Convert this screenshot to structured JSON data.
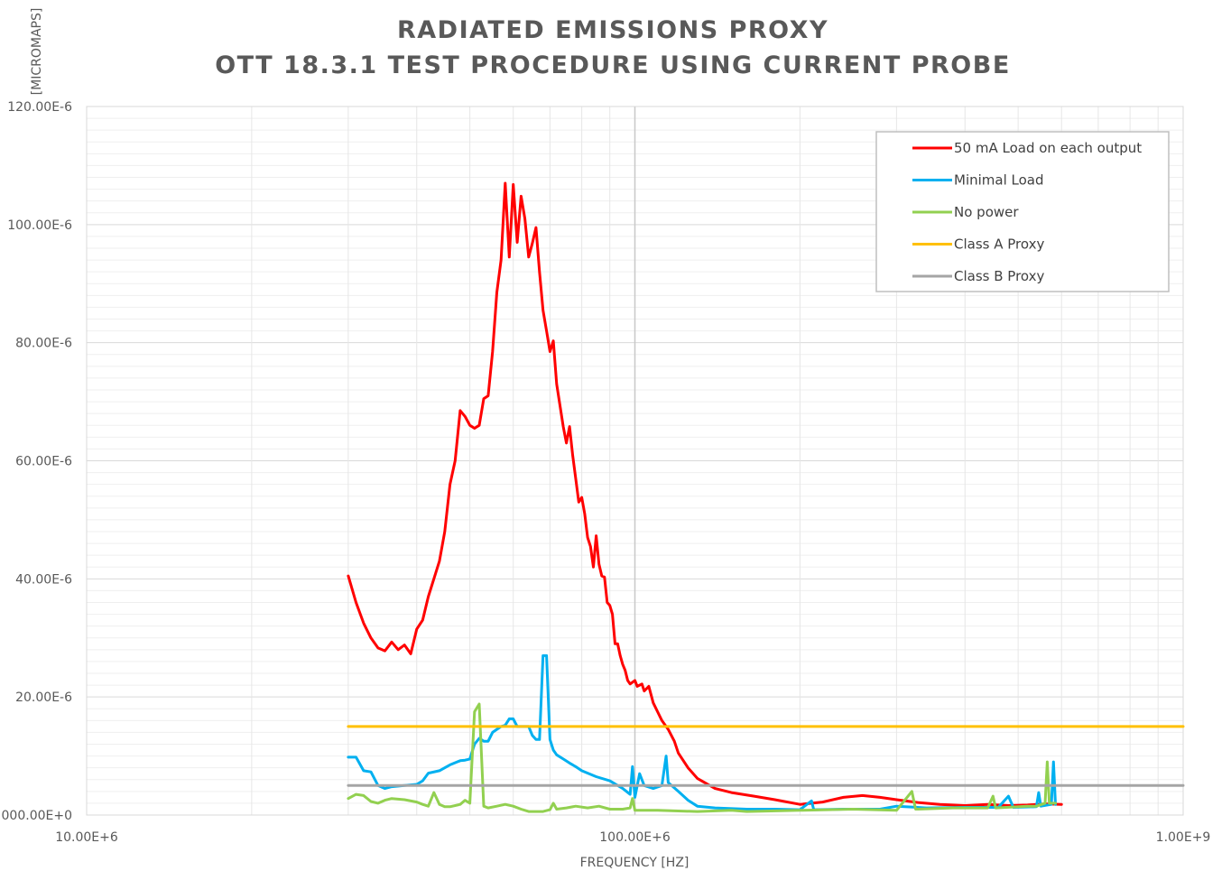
{
  "chart_data": {
    "type": "line",
    "title_lines": [
      "RADIATED EMISSIONS PROXY",
      "OTT 18.3.1 TEST PROCEDURE USING CURRENT PROBE"
    ],
    "xlabel": "FREQUENCY [HZ]",
    "ylabel": "[MICROMAPS]",
    "x_scale": "log",
    "xlim": [
      10000000,
      1000000000
    ],
    "ylim": [
      0,
      0.00012
    ],
    "x_ticks": [
      {
        "value": 10000000,
        "label": "10.00E+6"
      },
      {
        "value": 100000000,
        "label": "100.00E+6"
      },
      {
        "value": 1000000000,
        "label": "1.00E+9"
      }
    ],
    "y_ticks": [
      {
        "value": 0,
        "label": "000.00E+0"
      },
      {
        "value": 2e-05,
        "label": "20.00E-6"
      },
      {
        "value": 4e-05,
        "label": "40.00E-6"
      },
      {
        "value": 6e-05,
        "label": "60.00E-6"
      },
      {
        "value": 8e-05,
        "label": "80.00E-6"
      },
      {
        "value": 0.0001,
        "label": "100.00E-6"
      },
      {
        "value": 0.00012,
        "label": "120.00E-6"
      }
    ],
    "grid": true,
    "legend_position": "top-right",
    "series": [
      {
        "name": "50 mA Load on each output",
        "color": "#ff0000",
        "points": [
          [
            30000000.0,
            4.05e-05
          ],
          [
            31000000.0,
            3.6e-05
          ],
          [
            32000000.0,
            3.25e-05
          ],
          [
            33000000.0,
            3e-05
          ],
          [
            34000000.0,
            2.83e-05
          ],
          [
            35000000.0,
            2.78e-05
          ],
          [
            36000000.0,
            2.93e-05
          ],
          [
            37000000.0,
            2.8e-05
          ],
          [
            38000000.0,
            2.88e-05
          ],
          [
            39000000.0,
            2.73e-05
          ],
          [
            40000000.0,
            3.15e-05
          ],
          [
            41000000.0,
            3.3e-05
          ],
          [
            42000000.0,
            3.7e-05
          ],
          [
            44000000.0,
            4.3e-05
          ],
          [
            45000000.0,
            4.8e-05
          ],
          [
            46000000.0,
            5.6e-05
          ],
          [
            47000000.0,
            6e-05
          ],
          [
            48000000.0,
            6.85e-05
          ],
          [
            49000000.0,
            6.75e-05
          ],
          [
            50000000.0,
            6.6e-05
          ],
          [
            51000000.0,
            6.55e-05
          ],
          [
            52000000.0,
            6.6e-05
          ],
          [
            53000000.0,
            7.05e-05
          ],
          [
            54000000.0,
            7.1e-05
          ],
          [
            55000000.0,
            7.85e-05
          ],
          [
            56000000.0,
            8.85e-05
          ],
          [
            57000000.0,
            9.4e-05
          ],
          [
            58000000.0,
            0.000107
          ],
          [
            59000000.0,
            9.45e-05
          ],
          [
            60000000.0,
            0.0001068
          ],
          [
            61000000.0,
            9.7e-05
          ],
          [
            62000000.0,
            0.0001048
          ],
          [
            63000000.0,
            0.000101
          ],
          [
            64000000.0,
            9.45e-05
          ],
          [
            65000000.0,
            9.68e-05
          ],
          [
            66000000.0,
            9.95e-05
          ],
          [
            67000000.0,
            9.2e-05
          ],
          [
            68000000.0,
            8.55e-05
          ],
          [
            69000000.0,
            8.2e-05
          ],
          [
            70000000.0,
            7.85e-05
          ],
          [
            71000000.0,
            8.03e-05
          ],
          [
            72000000.0,
            7.3e-05
          ],
          [
            74000000.0,
            6.58e-05
          ],
          [
            75000000.0,
            6.3e-05
          ],
          [
            76000000.0,
            6.58e-05
          ],
          [
            77000000.0,
            6.1e-05
          ],
          [
            78000000.0,
            5.7e-05
          ],
          [
            79000000.0,
            5.3e-05
          ],
          [
            80000000.0,
            5.38e-05
          ],
          [
            81000000.0,
            5.1e-05
          ],
          [
            82000000.0,
            4.7e-05
          ],
          [
            83000000.0,
            4.55e-05
          ],
          [
            84000000.0,
            4.2e-05
          ],
          [
            85000000.0,
            4.73e-05
          ],
          [
            86000000.0,
            4.25e-05
          ],
          [
            87000000.0,
            4.05e-05
          ],
          [
            88000000.0,
            4.03e-05
          ],
          [
            89000000.0,
            3.6e-05
          ],
          [
            90000000.0,
            3.55e-05
          ],
          [
            91000000.0,
            3.4e-05
          ],
          [
            92000000.0,
            2.9e-05
          ],
          [
            93000000.0,
            2.9e-05
          ],
          [
            94000000.0,
            2.7e-05
          ],
          [
            95000000.0,
            2.55e-05
          ],
          [
            96000000.0,
            2.45e-05
          ],
          [
            97000000.0,
            2.28e-05
          ],
          [
            98000000.0,
            2.22e-05
          ],
          [
            100000000.0,
            2.28e-05
          ],
          [
            101000000.0,
            2.18e-05
          ],
          [
            103000000.0,
            2.22e-05
          ],
          [
            104000000.0,
            2.1e-05
          ],
          [
            106000000.0,
            2.18e-05
          ],
          [
            108000000.0,
            1.9e-05
          ],
          [
            110000000.0,
            1.75e-05
          ],
          [
            112000000.0,
            1.6e-05
          ],
          [
            115000000.0,
            1.45e-05
          ],
          [
            118000000.0,
            1.25e-05
          ],
          [
            120000000.0,
            1.05e-05
          ],
          [
            125000000.0,
            8e-06
          ],
          [
            130000000.0,
            6.2e-06
          ],
          [
            140000000.0,
            4.5e-06
          ],
          [
            150000000.0,
            3.8e-06
          ],
          [
            165000000.0,
            3.2e-06
          ],
          [
            180000000.0,
            2.6e-06
          ],
          [
            200000000.0,
            1.8e-06
          ],
          [
            220000000.0,
            2.2e-06
          ],
          [
            240000000.0,
            3e-06
          ],
          [
            260000000.0,
            3.3e-06
          ],
          [
            280000000.0,
            3e-06
          ],
          [
            300000000.0,
            2.6e-06
          ],
          [
            330000000.0,
            2.1e-06
          ],
          [
            360000000.0,
            1.8e-06
          ],
          [
            400000000.0,
            1.6e-06
          ],
          [
            440000000.0,
            1.8e-06
          ],
          [
            480000000.0,
            1.6e-06
          ],
          [
            520000000.0,
            1.7e-06
          ],
          [
            560000000.0,
            1.9e-06
          ],
          [
            600000000.0,
            1.8e-06
          ]
        ]
      },
      {
        "name": "Minimal Load",
        "color": "#00b0f0",
        "points": [
          [
            30000000.0,
            9.8e-06
          ],
          [
            31000000.0,
            9.8e-06
          ],
          [
            32000000.0,
            7.5e-06
          ],
          [
            33000000.0,
            7.3e-06
          ],
          [
            34000000.0,
            5e-06
          ],
          [
            35000000.0,
            4.5e-06
          ],
          [
            36000000.0,
            4.8e-06
          ],
          [
            38000000.0,
            5e-06
          ],
          [
            40000000.0,
            5.2e-06
          ],
          [
            41000000.0,
            5.8e-06
          ],
          [
            42000000.0,
            7.1e-06
          ],
          [
            44000000.0,
            7.5e-06
          ],
          [
            46000000.0,
            8.5e-06
          ],
          [
            48000000.0,
            9.2e-06
          ],
          [
            49000000.0,
            9.3e-06
          ],
          [
            50000000.0,
            9.5e-06
          ],
          [
            51000000.0,
            1.2e-05
          ],
          [
            52000000.0,
            1.3e-05
          ],
          [
            53000000.0,
            1.25e-05
          ],
          [
            54000000.0,
            1.25e-05
          ],
          [
            55000000.0,
            1.4e-05
          ],
          [
            56000000.0,
            1.45e-05
          ],
          [
            57000000.0,
            1.5e-05
          ],
          [
            58000000.0,
            1.52e-05
          ],
          [
            59000000.0,
            1.63e-05
          ],
          [
            60000000.0,
            1.63e-05
          ],
          [
            61000000.0,
            1.5e-05
          ],
          [
            62000000.0,
            1.5e-05
          ],
          [
            64000000.0,
            1.5e-05
          ],
          [
            65000000.0,
            1.35e-05
          ],
          [
            66000000.0,
            1.28e-05
          ],
          [
            67000000.0,
            1.28e-05
          ],
          [
            68000000.0,
            2.7e-05
          ],
          [
            69000000.0,
            2.7e-05
          ],
          [
            70000000.0,
            1.28e-05
          ],
          [
            71000000.0,
            1.1e-05
          ],
          [
            72000000.0,
            1.02e-05
          ],
          [
            74000000.0,
            9.5e-06
          ],
          [
            76000000.0,
            8.8e-06
          ],
          [
            78000000.0,
            8.2e-06
          ],
          [
            80000000.0,
            7.5e-06
          ],
          [
            85000000.0,
            6.5e-06
          ],
          [
            90000000.0,
            5.8e-06
          ],
          [
            95000000.0,
            4.5e-06
          ],
          [
            98000000.0,
            3.5e-06
          ],
          [
            99000000.0,
            8.2e-06
          ],
          [
            100000000.0,
            3e-06
          ],
          [
            102000000.0,
            7e-06
          ],
          [
            104000000.0,
            5e-06
          ],
          [
            108000000.0,
            4.5e-06
          ],
          [
            112000000.0,
            5e-06
          ],
          [
            114000000.0,
            1e-05
          ],
          [
            115000000.0,
            5.5e-06
          ],
          [
            120000000.0,
            4e-06
          ],
          [
            125000000.0,
            2.5e-06
          ],
          [
            130000000.0,
            1.5e-06
          ],
          [
            140000000.0,
            1.2e-06
          ],
          [
            160000000.0,
            1e-06
          ],
          [
            180000000.0,
            1e-06
          ],
          [
            200000000.0,
            9e-07
          ],
          [
            210000000.0,
            2.4e-06
          ],
          [
            212000000.0,
            9e-07
          ],
          [
            240000000.0,
            1e-06
          ],
          [
            280000000.0,
            1e-06
          ],
          [
            300000000.0,
            1.5e-06
          ],
          [
            340000000.0,
            1.2e-06
          ],
          [
            400000000.0,
            1.3e-06
          ],
          [
            460000000.0,
            1.3e-06
          ],
          [
            480000000.0,
            3.2e-06
          ],
          [
            490000000.0,
            1.3e-06
          ],
          [
            540000000.0,
            1.4e-06
          ],
          [
            545000000.0,
            3.8e-06
          ],
          [
            550000000.0,
            1.5e-06
          ],
          [
            575000000.0,
            1.8e-06
          ],
          [
            580000000.0,
            9e-06
          ],
          [
            585000000.0,
            1.8e-06
          ]
        ]
      },
      {
        "name": "No power",
        "color": "#92d050",
        "points": [
          [
            30000000.0,
            2.8e-06
          ],
          [
            31000000.0,
            3.5e-06
          ],
          [
            32000000.0,
            3.3e-06
          ],
          [
            33000000.0,
            2.3e-06
          ],
          [
            34000000.0,
            2e-06
          ],
          [
            35000000.0,
            2.5e-06
          ],
          [
            36000000.0,
            2.8e-06
          ],
          [
            38000000.0,
            2.6e-06
          ],
          [
            40000000.0,
            2.2e-06
          ],
          [
            41000000.0,
            1.8e-06
          ],
          [
            42000000.0,
            1.5e-06
          ],
          [
            43000000.0,
            3.8e-06
          ],
          [
            44000000.0,
            1.8e-06
          ],
          [
            45000000.0,
            1.4e-06
          ],
          [
            46000000.0,
            1.4e-06
          ],
          [
            48000000.0,
            1.8e-06
          ],
          [
            49000000.0,
            2.5e-06
          ],
          [
            50000000.0,
            2e-06
          ],
          [
            51000000.0,
            1.75e-05
          ],
          [
            52000000.0,
            1.88e-05
          ],
          [
            53000000.0,
            1.5e-06
          ],
          [
            54000000.0,
            1.2e-06
          ],
          [
            56000000.0,
            1.5e-06
          ],
          [
            58000000.0,
            1.8e-06
          ],
          [
            60000000.0,
            1.5e-06
          ],
          [
            62000000.0,
            1e-06
          ],
          [
            64000000.0,
            6e-07
          ],
          [
            68000000.0,
            6e-07
          ],
          [
            70000000.0,
            9e-07
          ],
          [
            71000000.0,
            2e-06
          ],
          [
            72000000.0,
            1e-06
          ],
          [
            75000000.0,
            1.2e-06
          ],
          [
            78000000.0,
            1.5e-06
          ],
          [
            82000000.0,
            1.2e-06
          ],
          [
            86000000.0,
            1.5e-06
          ],
          [
            90000000.0,
            1e-06
          ],
          [
            95000000.0,
            1e-06
          ],
          [
            98000000.0,
            1.2e-06
          ],
          [
            99000000.0,
            2.8e-06
          ],
          [
            100000000.0,
            8e-07
          ],
          [
            110000000.0,
            8e-07
          ],
          [
            130000000.0,
            6e-07
          ],
          [
            150000000.0,
            8e-07
          ],
          [
            160000000.0,
            6e-07
          ],
          [
            200000000.0,
            8e-07
          ],
          [
            250000000.0,
            1e-06
          ],
          [
            300000000.0,
            8e-07
          ],
          [
            320000000.0,
            4e-06
          ],
          [
            325000000.0,
            1e-06
          ],
          [
            380000000.0,
            1.2e-06
          ],
          [
            440000000.0,
            1.2e-06
          ],
          [
            450000000.0,
            3.2e-06
          ],
          [
            455000000.0,
            1.2e-06
          ],
          [
            520000000.0,
            1.5e-06
          ],
          [
            540000000.0,
            1.5e-06
          ],
          [
            560000000.0,
            2e-06
          ],
          [
            565000000.0,
            9e-06
          ],
          [
            570000000.0,
            2e-06
          ],
          [
            585000000.0,
            2e-06
          ]
        ]
      },
      {
        "name": "Class A Proxy",
        "color": "#ffc000",
        "points": [
          [
            30000000.0,
            1.5e-05
          ],
          [
            1000000000.0,
            1.5e-05
          ]
        ]
      },
      {
        "name": "Class B Proxy",
        "color": "#a5a5a5",
        "points": [
          [
            30000000.0,
            5e-06
          ],
          [
            1000000000.0,
            5e-06
          ]
        ]
      }
    ]
  }
}
